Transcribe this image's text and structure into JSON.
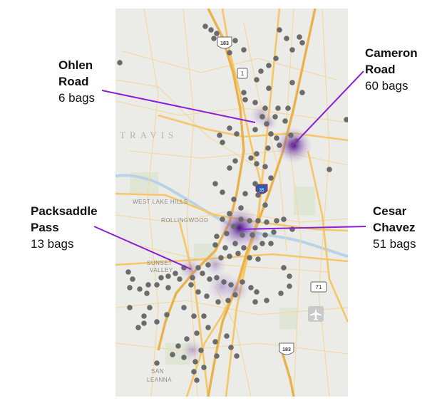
{
  "callouts": [
    {
      "name": "Ohlen\nRoad",
      "count": "6 bags"
    },
    {
      "name": "Cameron\nRoad",
      "count": "60 bags"
    },
    {
      "name": "Packsaddle\nPass",
      "count": "13 bags"
    },
    {
      "name": "Cesar\nChavez",
      "count": "51 bags"
    }
  ],
  "map_labels": {
    "county": "TRAVIS",
    "west_lake_hills": "WEST LAKE HILLS",
    "rollingwood": "ROLLINGWOOD",
    "sunset_valley_1": "SUNSET",
    "sunset_valley_2": "VALLEY",
    "san_leanna_1": "SAN",
    "san_leanna_2": "LEANNA"
  },
  "shields": {
    "us183_north": "183",
    "loop1": "1",
    "i35": "35",
    "sh71": "71",
    "us183_south": "183"
  },
  "colors": {
    "leader_line": "#8b1fd6",
    "hotspot": "#5a2a8c",
    "collection_point": "#6b6b6b",
    "road": "#f5c767",
    "highway": "#e9b24a"
  },
  "icons": {
    "airport": "airplane-icon"
  }
}
